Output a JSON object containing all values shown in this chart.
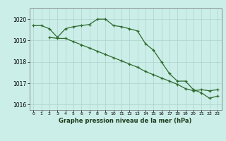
{
  "line1_x": [
    0,
    1,
    2,
    3,
    4,
    5,
    6,
    7,
    8,
    9,
    10,
    11,
    12,
    13,
    14,
    15,
    16,
    17,
    18,
    19,
    20,
    21,
    22,
    23
  ],
  "line1_y": [
    1019.7,
    1019.7,
    1019.55,
    1019.15,
    1019.55,
    1019.65,
    1019.7,
    1019.75,
    1020.0,
    1020.0,
    1019.7,
    1019.65,
    1019.55,
    1019.45,
    1018.85,
    1018.55,
    1018.0,
    1017.45,
    1017.1,
    1017.1,
    1016.7,
    1016.55,
    1016.3,
    1016.4
  ],
  "line2_x": [
    2,
    3,
    4,
    5,
    6,
    7,
    8,
    9,
    10,
    11,
    12,
    13,
    14,
    15,
    16,
    17,
    18,
    19,
    20,
    21,
    22,
    23
  ],
  "line2_y": [
    1019.15,
    1019.1,
    1019.1,
    1018.95,
    1018.8,
    1018.65,
    1018.5,
    1018.35,
    1018.2,
    1018.05,
    1017.9,
    1017.75,
    1017.55,
    1017.4,
    1017.25,
    1017.1,
    1016.95,
    1016.75,
    1016.65,
    1016.7,
    1016.65,
    1016.7
  ],
  "line_color": "#2d6a2d",
  "bg_color": "#cceee8",
  "grid_color": "#aad4cc",
  "xlabel": "Graphe pression niveau de la mer (hPa)",
  "xlim": [
    -0.5,
    23.5
  ],
  "ylim": [
    1015.75,
    1020.5
  ],
  "yticks": [
    1016,
    1017,
    1018,
    1019,
    1020
  ],
  "xticks": [
    0,
    1,
    2,
    3,
    4,
    5,
    6,
    7,
    8,
    9,
    10,
    11,
    12,
    13,
    14,
    15,
    16,
    17,
    18,
    19,
    20,
    21,
    22,
    23
  ],
  "marker": "+",
  "marker_size": 3,
  "linewidth": 0.9
}
